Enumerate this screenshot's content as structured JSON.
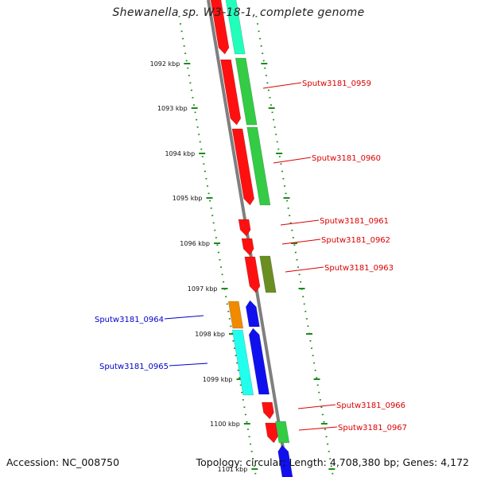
{
  "header": {
    "title": "Shewanella sp. W3-18-1, complete genome"
  },
  "footer": {
    "accession": "Accession: NC_008750",
    "summary": "Topology: circular; Length: 4,708,380 bp; Genes: 4,172"
  },
  "colors": {
    "backbone": "#7f7f7f",
    "tick": "#1d8a1d",
    "label_forward": "#dd0000",
    "label_reverse": "#0000cc",
    "cds_red": "#ff1010",
    "cds_green": "#33cc44",
    "cds_teal": "#22ffbb",
    "cds_olive": "#6b8e23",
    "cds_orange": "#f08a00",
    "cds_cyan": "#22ffee",
    "cds_blue": "#1010ee"
  },
  "ticks": [
    {
      "label": "1092 kbp"
    },
    {
      "label": "1093 kbp"
    },
    {
      "label": "1094 kbp"
    },
    {
      "label": "1095 kbp"
    },
    {
      "label": "1096 kbp"
    },
    {
      "label": "1097 kbp"
    },
    {
      "label": "1098 kbp"
    },
    {
      "label": "1099 kbp"
    },
    {
      "label": "1100 kbp"
    },
    {
      "label": "1101 kbp"
    }
  ],
  "gene_labels": [
    {
      "name": "Sputw3181_0959",
      "strand": "forward"
    },
    {
      "name": "Sputw3181_0960",
      "strand": "forward"
    },
    {
      "name": "Sputw3181_0961",
      "strand": "forward"
    },
    {
      "name": "Sputw3181_0962",
      "strand": "forward"
    },
    {
      "name": "Sputw3181_0963",
      "strand": "forward"
    },
    {
      "name": "Sputw3181_0964",
      "strand": "reverse"
    },
    {
      "name": "Sputw3181_0965",
      "strand": "reverse"
    },
    {
      "name": "Sputw3181_0966",
      "strand": "forward"
    },
    {
      "name": "Sputw3181_0967",
      "strand": "forward"
    }
  ]
}
